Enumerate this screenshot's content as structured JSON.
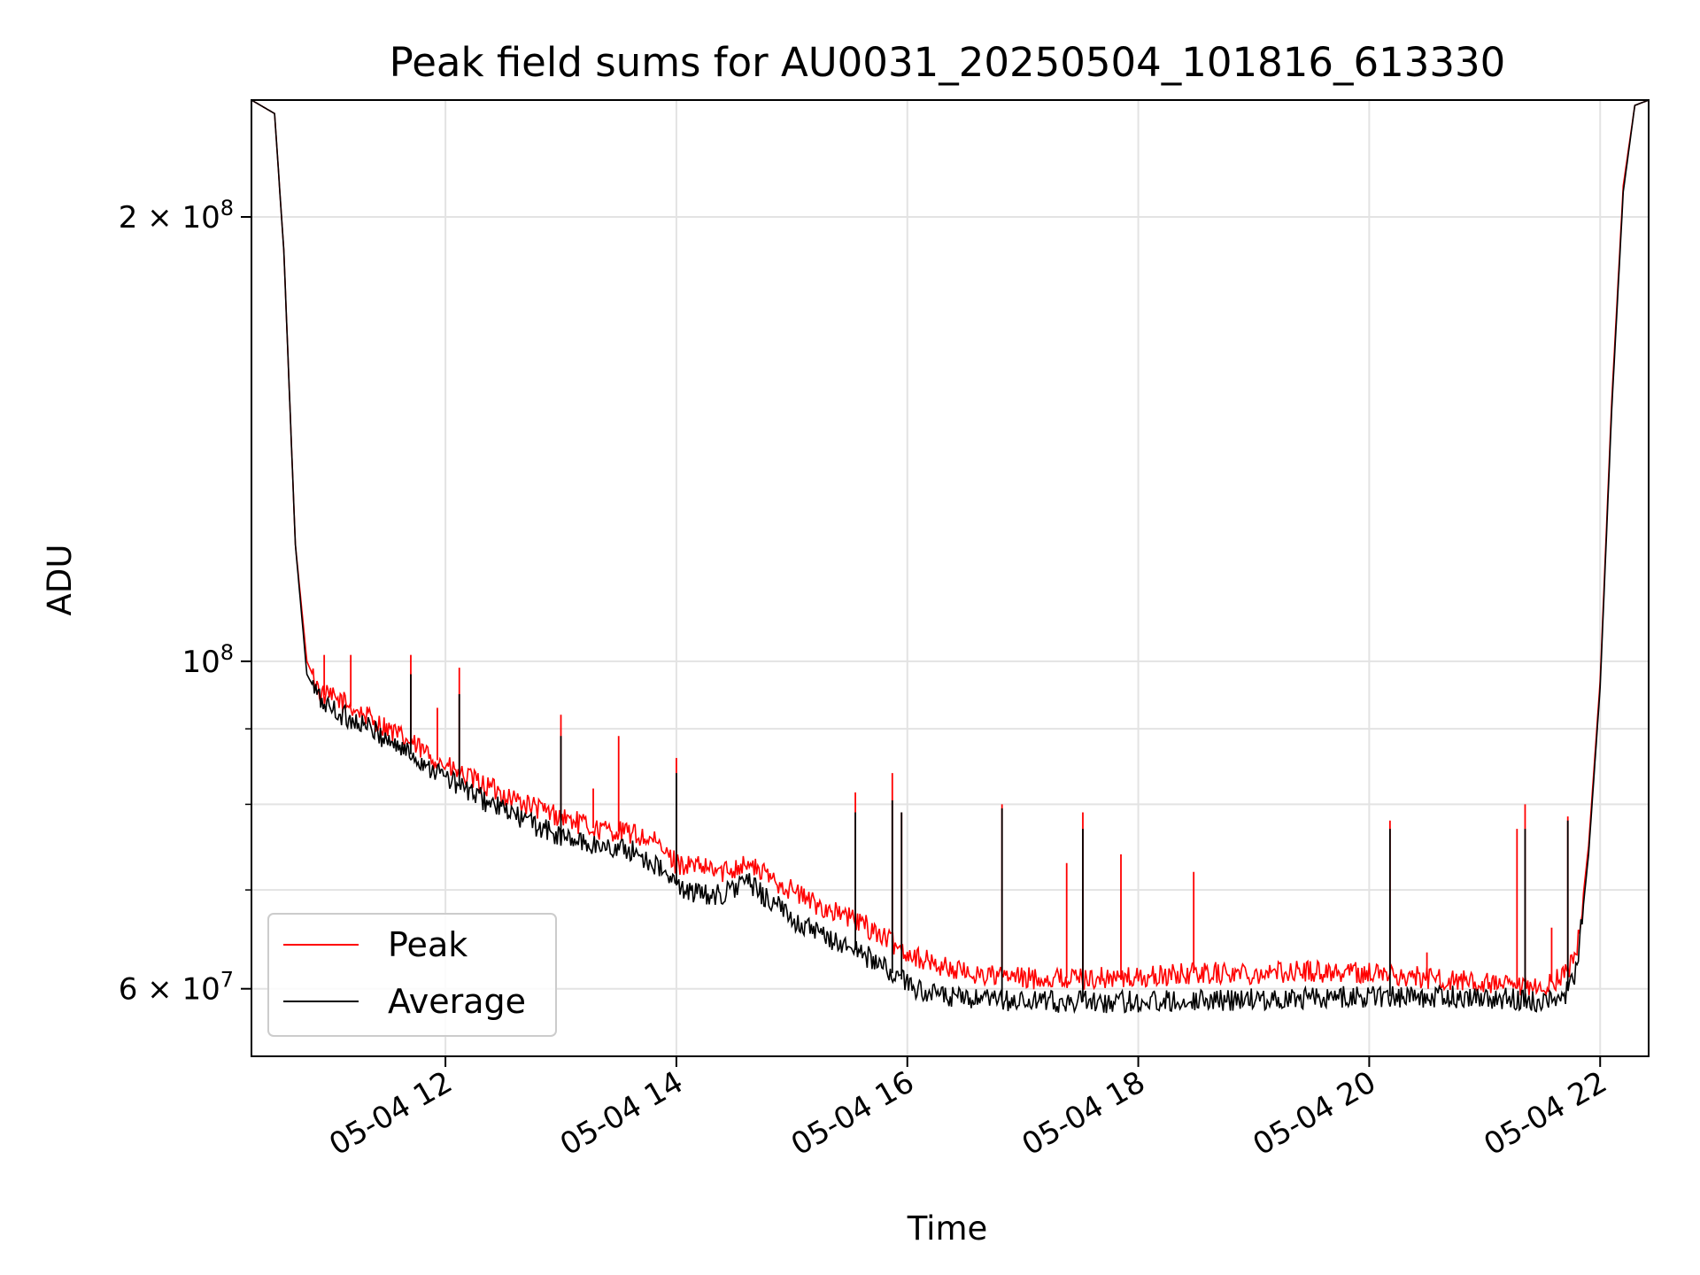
{
  "chart_data": {
    "type": "line",
    "title": "Peak field sums for AU0031_20250504_101816_613330",
    "xlabel": "Time",
    "ylabel": "ADU",
    "x_ticks": [
      "05-04 12",
      "05-04 14",
      "05-04 16",
      "05-04 18",
      "05-04 20",
      "05-04 22"
    ],
    "y_scale": "log",
    "y_ticks": [
      {
        "value": 200000000,
        "mantissa": "2",
        "exponent": "8"
      },
      {
        "value": 100000000,
        "mantissa": "",
        "exponent": "8"
      },
      {
        "value": 60000000,
        "mantissa": "6",
        "exponent": "7"
      }
    ],
    "ylim": [
      54000000,
      240000000
    ],
    "xlim_hours": [
      10.32,
      22.42
    ],
    "grid": true,
    "legend_position": "lower-left",
    "series": [
      {
        "name": "Peak",
        "color": "#ff0000",
        "x": [
          10.32,
          10.52,
          10.6,
          10.7,
          10.8,
          10.92,
          11.1,
          11.3,
          11.5,
          11.7,
          11.9,
          12.1,
          12.4,
          12.7,
          13.0,
          13.3,
          13.6,
          13.8,
          14.0,
          14.2,
          14.4,
          14.6,
          14.8,
          15.0,
          15.2,
          15.4,
          15.6,
          15.8,
          16.0,
          16.2,
          16.5,
          17.0,
          17.5,
          18.0,
          18.5,
          19.0,
          19.5,
          20.0,
          20.5,
          21.0,
          21.3,
          21.5,
          21.7,
          21.8,
          21.9,
          22.0,
          22.1,
          22.2,
          22.3,
          22.42
        ],
        "y": [
          240000000,
          235000000,
          190000000,
          120000000,
          100000000,
          95000000,
          94000000,
          92000000,
          90000000,
          88000000,
          86000000,
          84000000,
          82000000,
          80000000,
          78500000,
          77000000,
          76500000,
          75500000,
          73000000,
          72500000,
          72000000,
          73000000,
          71500000,
          70000000,
          68500000,
          67500000,
          66500000,
          65000000,
          63500000,
          62500000,
          61500000,
          61000000,
          61000000,
          61000000,
          61500000,
          61500000,
          61700000,
          61500000,
          61000000,
          60500000,
          60000000,
          60000000,
          61500000,
          63500000,
          75000000,
          97000000,
          150000000,
          210000000,
          238000000,
          240000000
        ],
        "spikes": [
          {
            "x": 10.95,
            "y": 101000000
          },
          {
            "x": 11.18,
            "y": 101000000
          },
          {
            "x": 11.7,
            "y": 101000000
          },
          {
            "x": 11.93,
            "y": 93000000
          },
          {
            "x": 12.12,
            "y": 99000000
          },
          {
            "x": 13.0,
            "y": 92000000
          },
          {
            "x": 13.28,
            "y": 82000000
          },
          {
            "x": 13.5,
            "y": 89000000
          },
          {
            "x": 14.0,
            "y": 86000000
          },
          {
            "x": 15.55,
            "y": 81500000
          },
          {
            "x": 15.87,
            "y": 84000000
          },
          {
            "x": 15.95,
            "y": 79000000
          },
          {
            "x": 16.82,
            "y": 80000000
          },
          {
            "x": 17.38,
            "y": 73000000
          },
          {
            "x": 17.52,
            "y": 79000000
          },
          {
            "x": 17.85,
            "y": 74000000
          },
          {
            "x": 18.48,
            "y": 72000000
          },
          {
            "x": 20.18,
            "y": 78000000
          },
          {
            "x": 20.5,
            "y": 63500000
          },
          {
            "x": 21.28,
            "y": 77000000
          },
          {
            "x": 21.35,
            "y": 80000000
          },
          {
            "x": 21.58,
            "y": 66000000
          },
          {
            "x": 21.72,
            "y": 78500000
          }
        ]
      },
      {
        "name": "Average",
        "color": "#000000",
        "x": [
          10.32,
          10.52,
          10.6,
          10.7,
          10.8,
          10.92,
          11.1,
          11.3,
          11.5,
          11.7,
          11.9,
          12.1,
          12.4,
          12.7,
          13.0,
          13.3,
          13.6,
          13.8,
          14.0,
          14.2,
          14.4,
          14.6,
          14.8,
          15.0,
          15.2,
          15.4,
          15.6,
          15.8,
          16.0,
          16.2,
          16.5,
          17.0,
          17.5,
          18.0,
          18.5,
          19.0,
          19.5,
          20.0,
          20.5,
          21.0,
          21.3,
          21.5,
          21.7,
          21.8,
          21.9,
          22.0,
          22.1,
          22.2,
          22.3,
          22.42
        ],
        "y": [
          240000000,
          235000000,
          190000000,
          120000000,
          98000000,
          94000000,
          92000000,
          90500000,
          88500000,
          86500000,
          84500000,
          82500000,
          80000000,
          78000000,
          76000000,
          75000000,
          74500000,
          73000000,
          70500000,
          69500000,
          69500000,
          71000000,
          69000000,
          67000000,
          65500000,
          64500000,
          63500000,
          62000000,
          60500000,
          59500000,
          59000000,
          58800000,
          58800000,
          58800000,
          59000000,
          59000000,
          59200000,
          59300000,
          59300000,
          59200000,
          59000000,
          58700000,
          59500000,
          62000000,
          74000000,
          96000000,
          148000000,
          208000000,
          238000000,
          240000000
        ],
        "spikes": [
          {
            "x": 11.7,
            "y": 98000000
          },
          {
            "x": 12.12,
            "y": 95000000
          },
          {
            "x": 13.0,
            "y": 89000000
          },
          {
            "x": 14.0,
            "y": 84000000
          },
          {
            "x": 15.55,
            "y": 79000000
          },
          {
            "x": 15.87,
            "y": 80500000
          },
          {
            "x": 15.95,
            "y": 79000000
          },
          {
            "x": 16.82,
            "y": 79500000
          },
          {
            "x": 17.52,
            "y": 77000000
          },
          {
            "x": 20.18,
            "y": 77000000
          },
          {
            "x": 21.35,
            "y": 77000000
          },
          {
            "x": 21.72,
            "y": 78000000
          }
        ]
      }
    ]
  }
}
